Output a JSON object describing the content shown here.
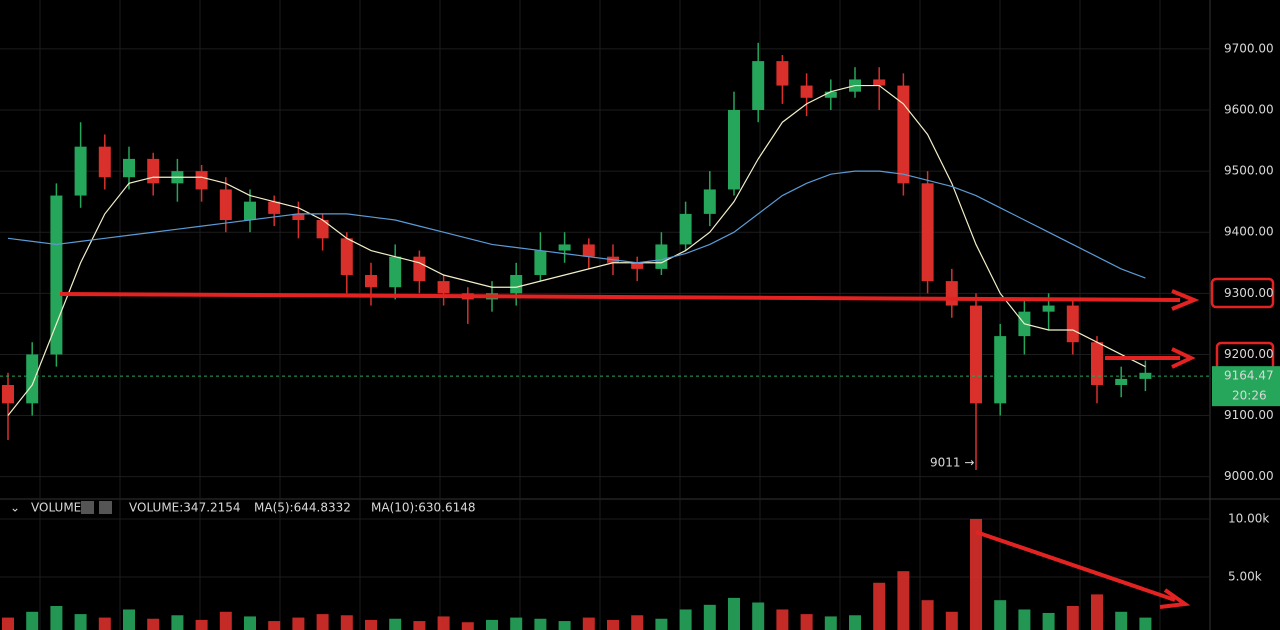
{
  "chart_data": {
    "type": "candlestick",
    "open": [
      9150,
      9120,
      9200,
      9460,
      9540,
      9490,
      9520,
      9480,
      9500,
      9470,
      9420,
      9450,
      9430,
      9420,
      9390,
      9330,
      9310,
      9360,
      9320,
      9300,
      9290,
      9300,
      9330,
      9370,
      9380,
      9360,
      9350,
      9340,
      9380,
      9430,
      9470,
      9600,
      9680,
      9640,
      9620,
      9630,
      9650,
      9640,
      9480,
      9320,
      9280,
      9120,
      9230,
      9270,
      9280,
      9220,
      9150,
      9160
    ],
    "high": [
      9170,
      9220,
      9480,
      9580,
      9560,
      9540,
      9530,
      9520,
      9510,
      9490,
      9470,
      9460,
      9450,
      9430,
      9400,
      9350,
      9380,
      9370,
      9330,
      9310,
      9320,
      9350,
      9400,
      9400,
      9390,
      9380,
      9360,
      9400,
      9450,
      9500,
      9630,
      9710,
      9690,
      9660,
      9650,
      9670,
      9670,
      9660,
      9500,
      9340,
      9300,
      9250,
      9290,
      9300,
      9290,
      9230,
      9180,
      9190
    ],
    "low": [
      9060,
      9100,
      9180,
      9440,
      9470,
      9470,
      9460,
      9450,
      9450,
      9400,
      9400,
      9410,
      9390,
      9370,
      9300,
      9280,
      9290,
      9300,
      9280,
      9250,
      9270,
      9280,
      9320,
      9350,
      9340,
      9330,
      9320,
      9330,
      9370,
      9410,
      9460,
      9580,
      9610,
      9590,
      9600,
      9620,
      9600,
      9460,
      9300,
      9260,
      9011,
      9100,
      9200,
      9240,
      9200,
      9120,
      9130,
      9140
    ],
    "close": [
      9120,
      9200,
      9460,
      9540,
      9490,
      9520,
      9480,
      9500,
      9470,
      9420,
      9450,
      9430,
      9420,
      9390,
      9330,
      9310,
      9360,
      9320,
      9300,
      9290,
      9300,
      9330,
      9370,
      9380,
      9360,
      9350,
      9340,
      9380,
      9430,
      9470,
      9600,
      9680,
      9640,
      9620,
      9630,
      9650,
      9640,
      9480,
      9320,
      9280,
      9120,
      9230,
      9270,
      9280,
      9220,
      9150,
      9160,
      9170
    ],
    "up_color": "#26a65b",
    "down_color": "#d9302b",
    "ma_lines": [
      {
        "color": "#f2efc8",
        "values": [
          9100,
          9150,
          9250,
          9350,
          9430,
          9480,
          9490,
          9490,
          9490,
          9480,
          9460,
          9450,
          9440,
          9420,
          9390,
          9370,
          9360,
          9350,
          9330,
          9320,
          9310,
          9310,
          9320,
          9330,
          9340,
          9350,
          9350,
          9350,
          9370,
          9400,
          9450,
          9520,
          9580,
          9610,
          9630,
          9640,
          9640,
          9610,
          9560,
          9480,
          9380,
          9300,
          9250,
          9240,
          9240,
          9220,
          9200,
          9180
        ]
      },
      {
        "color": "#5b9bd5",
        "values": [
          9390,
          9385,
          9380,
          9385,
          9390,
          9395,
          9400,
          9405,
          9410,
          9415,
          9420,
          9425,
          9430,
          9430,
          9430,
          9425,
          9420,
          9410,
          9400,
          9390,
          9380,
          9375,
          9370,
          9365,
          9360,
          9355,
          9350,
          9355,
          9365,
          9380,
          9400,
          9430,
          9460,
          9480,
          9495,
          9500,
          9500,
          9495,
          9485,
          9475,
          9460,
          9440,
          9420,
          9400,
          9380,
          9360,
          9340,
          9325
        ]
      }
    ],
    "ylim": [
      8970,
      9780
    ],
    "yticks": [
      {
        "value": 9000,
        "label": "9000.00"
      },
      {
        "value": 9100,
        "label": "9100.00"
      },
      {
        "value": 9200,
        "label": "9200.00"
      },
      {
        "value": 9300,
        "label": "9300.00"
      },
      {
        "value": 9400,
        "label": "9400.00"
      },
      {
        "value": 9500,
        "label": "9500.00"
      },
      {
        "value": 9600,
        "label": "9600.00"
      },
      {
        "value": 9700,
        "label": "9700.00"
      }
    ],
    "last_price": 9164.47,
    "countdown": "20:26",
    "low_annotation": {
      "value": 9011,
      "label": "9011 →"
    },
    "volume": {
      "header": "VOLUME",
      "volume_label": "VOLUME:347.2154",
      "ma5_label": "MA(5):644.8332",
      "ma10_label": "MA(10):630.6148",
      "values": [
        1500,
        2000,
        2500,
        1800,
        1500,
        2200,
        1400,
        1700,
        1300,
        2000,
        1600,
        1200,
        1500,
        1800,
        1700,
        1300,
        1400,
        1200,
        1600,
        1100,
        1300,
        1500,
        1400,
        1200,
        1500,
        1300,
        1700,
        1400,
        2200,
        2600,
        3200,
        2800,
        2200,
        1800,
        1600,
        1700,
        4500,
        5500,
        3000,
        2000,
        10000,
        3000,
        2200,
        1900,
        2500,
        3500,
        2000,
        1500
      ],
      "ylim": [
        430,
        10600
      ],
      "yticks": [
        {
          "value": 5000,
          "label": "5.00k"
        },
        {
          "value": 10000,
          "label": "10.00k"
        }
      ]
    }
  }
}
